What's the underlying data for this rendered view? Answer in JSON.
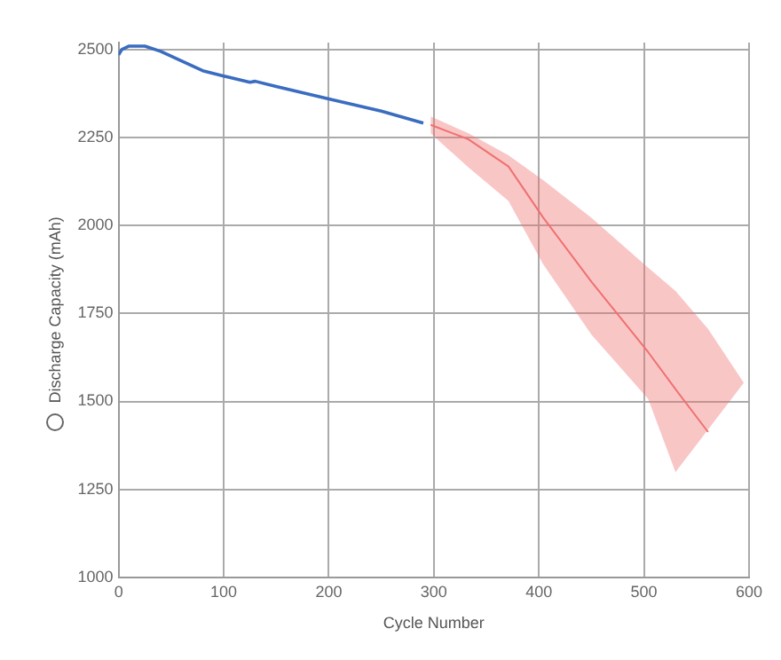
{
  "chart_data": {
    "type": "line",
    "xlabel": "Cycle Number",
    "ylabel": "Discharge Capacity (mAh)",
    "xlim": [
      0,
      600
    ],
    "xticks": [
      0,
      100,
      200,
      300,
      400,
      500,
      600
    ],
    "ylim": [
      1000,
      2520
    ],
    "yticks": [
      1000,
      1250,
      1500,
      1750,
      2000,
      2250,
      2500
    ],
    "grid": true,
    "legend": false,
    "marker": "none",
    "line_style": "solid",
    "series": [
      {
        "color": "#3a6cc0",
        "x": [
          0,
          3,
          10,
          25,
          40,
          80,
          100,
          125,
          130,
          150,
          200,
          250,
          290
        ],
        "values": [
          2485,
          2500,
          2510,
          2510,
          2495,
          2440,
          2425,
          2407,
          2410,
          2395,
          2360,
          2325,
          2291
        ]
      },
      {
        "color": "#f07070",
        "x": [
          297,
          333,
          371,
          404,
          450,
          504,
          530,
          561,
          595
        ],
        "values": [
          2286,
          2245,
          2168,
          2023,
          1840,
          1640,
          1535,
          1413,
          null
        ],
        "lower": [
          2262,
          2165,
          2070,
          1890,
          1690,
          1507,
          1299,
          1420,
          1553
        ],
        "upper": [
          2310,
          2262,
          2200,
          2129,
          2022,
          1880,
          1814,
          1706,
          1553
        ]
      }
    ]
  }
}
